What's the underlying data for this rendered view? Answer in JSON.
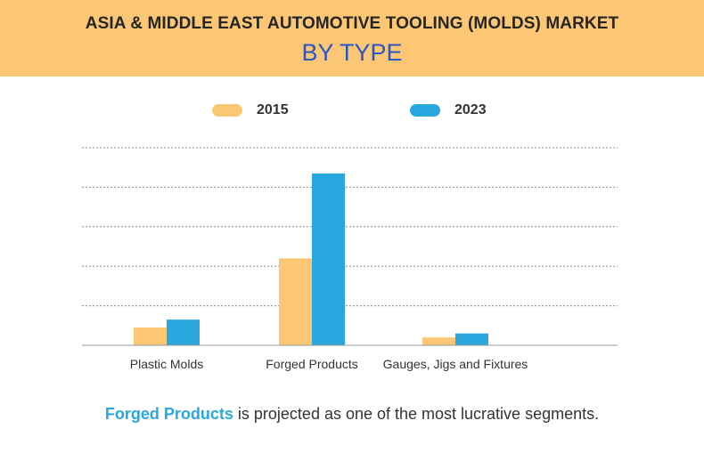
{
  "header": {
    "title": "ASIA & MIDDLE EAST AUTOMOTIVE TOOLING (MOLDS) MARKET",
    "subtitle": "BY TYPE"
  },
  "colors": {
    "header_bg": "#fbc774",
    "series_2015": "#fbc774",
    "series_2023": "#29a8df",
    "subtitle": "#2a56c6"
  },
  "chart_data": {
    "type": "bar",
    "categories": [
      "Plastic Molds",
      "Forged Products",
      "Gauges, Jigs and Fixtures"
    ],
    "series": [
      {
        "name": "2015",
        "values": [
          0.9,
          4.4,
          0.4
        ]
      },
      {
        "name": "2023",
        "values": [
          1.3,
          8.7,
          0.6
        ]
      }
    ],
    "ylim": [
      0,
      10
    ],
    "grid": true,
    "legend": "top-center",
    "title": "",
    "xlabel": "",
    "ylabel": ""
  },
  "footer": {
    "highlight": "Forged Products",
    "text": " is projected as one of the most lucrative segments."
  }
}
